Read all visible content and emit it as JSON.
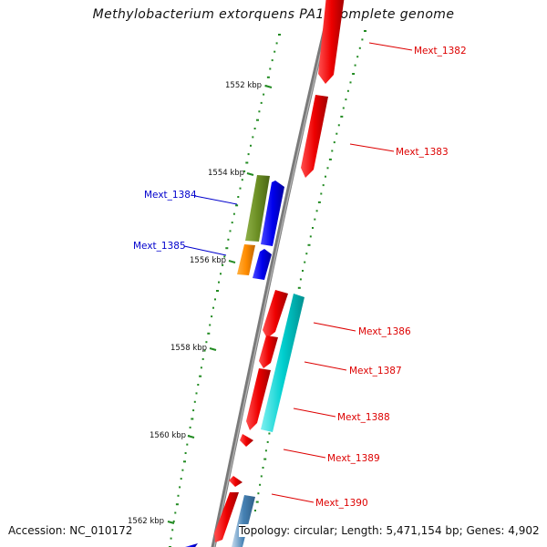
{
  "title": "Methylobacterium extorquens PA1, complete genome",
  "accession": "Accession: NC_010172",
  "stats": "Topology: circular; Length: 5,471,154 bp; Genes: 4,902",
  "colors": {
    "backbone": "#777777",
    "forward_gene": "#ee0000",
    "reverse_gene": "#0000ee",
    "tick": "#228b22",
    "forward_label": "#dd0000",
    "reverse_label": "#0000cc",
    "green_gene": "#6b8e23",
    "orange_gene": "#ff8c00",
    "cyan_gene": "#00cccc",
    "steelblue_gene": "#4682b4"
  },
  "tick_labels": [
    "1552 kbp",
    "1554 kbp",
    "1556 kbp",
    "1558 kbp",
    "1560 kbp",
    "1562 kbp"
  ],
  "gene_labels": [
    "Mext_1382",
    "Mext_1383",
    "Mext_1384",
    "Mext_1385",
    "Mext_1386",
    "Mext_1387",
    "Mext_1388",
    "Mext_1389",
    "Mext_1390"
  ]
}
